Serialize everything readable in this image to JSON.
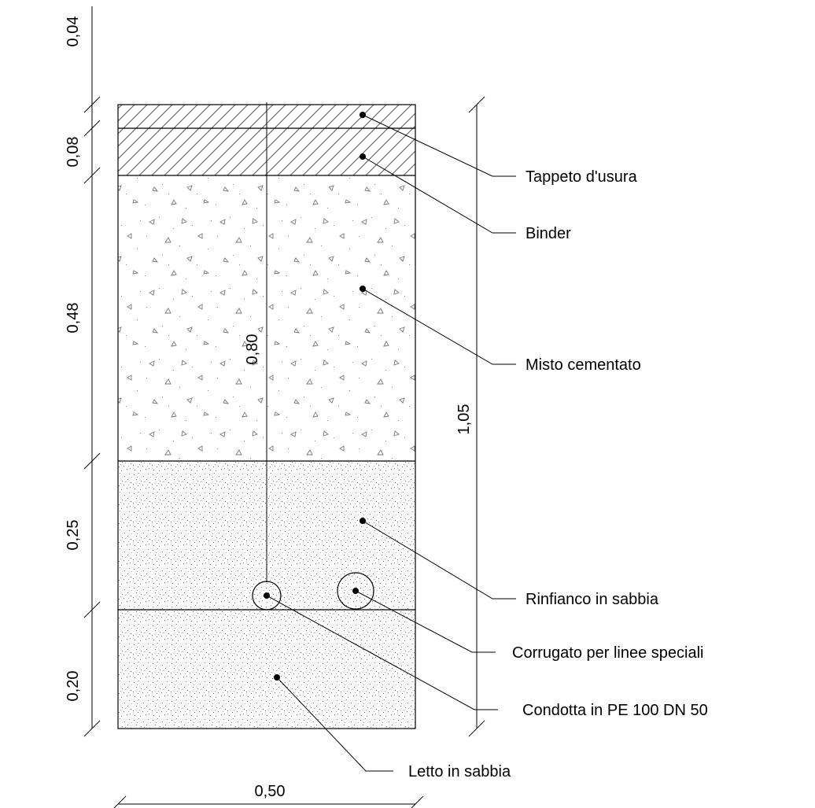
{
  "section": {
    "layers": [
      {
        "name": "Tappeto d'usura",
        "thickness": "0,04"
      },
      {
        "name": "Binder",
        "thickness": "0,08"
      },
      {
        "name": "Misto cementato",
        "thickness": "0,48"
      },
      {
        "name": "Rinfianco in sabbia",
        "thickness": "0,25"
      },
      {
        "name": "Letto in sabbia",
        "thickness": "0,20"
      }
    ],
    "pipes": [
      {
        "name": "Condotta in PE 100 DN 50"
      },
      {
        "name": "Corrugato per linee speciali"
      }
    ],
    "dimensions": {
      "total_depth": "1,05",
      "pipe_depth": "0,80",
      "width": "0,50"
    }
  }
}
